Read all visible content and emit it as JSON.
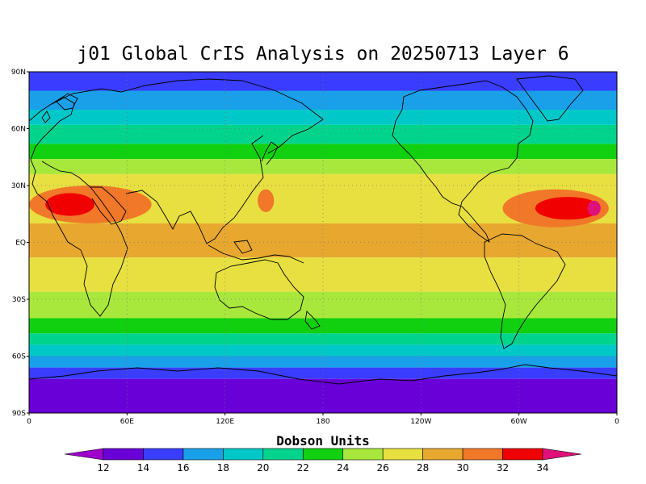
{
  "title": "j01 Global CrIS Analysis on 20250713 Layer 6",
  "y_ticks": [
    "90N",
    "60N",
    "30N",
    "EQ",
    "30S",
    "60S",
    "90S"
  ],
  "x_ticks": [
    "0",
    "60E",
    "120E",
    "180",
    "120W",
    "60W",
    "0"
  ],
  "colorbar": {
    "title": "Dobson Units",
    "labels": [
      "12",
      "14",
      "16",
      "18",
      "20",
      "22",
      "24",
      "26",
      "28",
      "30",
      "32",
      "34"
    ],
    "colors": [
      "#9d00ca",
      "#6a00d8",
      "#3a3cff",
      "#1aa0e8",
      "#00c8c8",
      "#00d48c",
      "#10d010",
      "#a8e83c",
      "#e8e040",
      "#e8a830",
      "#f07828",
      "#f00000",
      "#e0107a"
    ]
  },
  "field_bands": [
    {
      "lat": 90,
      "level": 2
    },
    {
      "lat": 80,
      "level": 3
    },
    {
      "lat": 70,
      "level": 4
    },
    {
      "lat": 62,
      "level": 5
    },
    {
      "lat": 52,
      "level": 6
    },
    {
      "lat": 44,
      "level": 7
    },
    {
      "lat": 36,
      "level": 8
    },
    {
      "lat": 10,
      "level": 9
    },
    {
      "lat": -8,
      "level": 8
    },
    {
      "lat": -26,
      "level": 7
    },
    {
      "lat": -40,
      "level": 6
    },
    {
      "lat": -48,
      "level": 5
    },
    {
      "lat": -54,
      "level": 4
    },
    {
      "lat": -60,
      "level": 3
    },
    {
      "lat": -66,
      "level": 2
    },
    {
      "lat": -72,
      "level": 1
    }
  ],
  "highlights": [
    {
      "lon_range": [
        0,
        75
      ],
      "lat_range": [
        10,
        30
      ],
      "level": 10
    },
    {
      "lon_range": [
        10,
        40
      ],
      "lat_range": [
        14,
        26
      ],
      "level": 11
    },
    {
      "lon_range": [
        290,
        355
      ],
      "lat_range": [
        8,
        28
      ],
      "level": 10
    },
    {
      "lon_range": [
        310,
        350
      ],
      "lat_range": [
        12,
        24
      ],
      "level": 11
    },
    {
      "lon_range": [
        342,
        350
      ],
      "lat_range": [
        14,
        22
      ],
      "level": 12
    },
    {
      "lon_range": [
        140,
        150
      ],
      "lat_range": [
        16,
        28
      ],
      "level": 10
    }
  ]
}
